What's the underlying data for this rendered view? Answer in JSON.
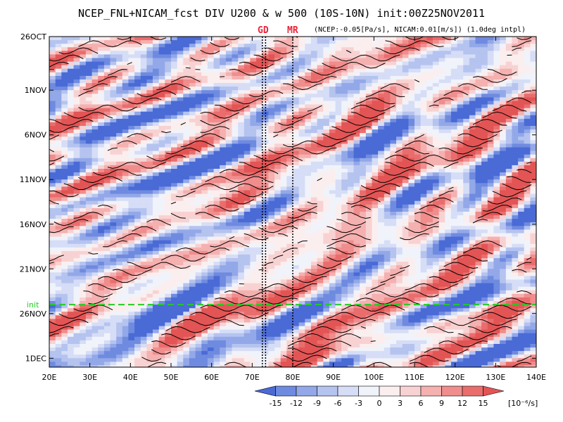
{
  "chart_data": {
    "type": "heatmap",
    "title": "NCEP_FNL+NICAM_fcst DIV U200 & w 500 (10S-10N) init:00Z25NOV2011",
    "annotation": "(NCEP:-0.05[Pa/s], NICAM:0.01[m/s]) (1.0deg intpl)",
    "x_tick_labels": [
      "20E",
      "30E",
      "40E",
      "50E",
      "60E",
      "70E",
      "80E",
      "90E",
      "100E",
      "110E",
      "120E",
      "130E",
      "140E"
    ],
    "x_ticks": [
      20,
      30,
      40,
      50,
      60,
      70,
      80,
      90,
      100,
      110,
      120,
      130,
      140
    ],
    "xlim": [
      20,
      140
    ],
    "y_tick_labels": [
      "26OCT",
      "1NOV",
      "6NOV",
      "11NOV",
      "16NOV",
      "21NOV",
      "26NOV",
      "1DEC"
    ],
    "y_ticks": [
      0,
      6,
      11,
      16,
      21,
      26,
      31,
      36
    ],
    "ylim": [
      0,
      37
    ],
    "init_label": "init",
    "init_day": 30,
    "vertical_markers": [
      {
        "label": "GD",
        "x": [
          72.5,
          73.3
        ]
      },
      {
        "label": "MR",
        "x": [
          80
        ]
      }
    ],
    "colorbar": {
      "levels": [
        -15,
        -12,
        -9,
        -6,
        -3,
        0,
        3,
        6,
        9,
        12,
        15
      ],
      "tick_labels": [
        "-15",
        "-12",
        "-9",
        "-6",
        "-3",
        "0",
        "3",
        "6",
        "9",
        "12",
        "15"
      ],
      "unit": "[10⁻⁶/s]",
      "colors": [
        "#4a6ad6",
        "#6f8be0",
        "#93a8e8",
        "#b5c3ef",
        "#d6ddf6",
        "#f1f3fb",
        "#fbeeee",
        "#f8d2d2",
        "#f5b0b0",
        "#f08d8d",
        "#ea6d6d",
        "#e35454"
      ]
    },
    "colors": {
      "init_line": "#22cc22",
      "marker_tag": "#e8253a"
    }
  }
}
